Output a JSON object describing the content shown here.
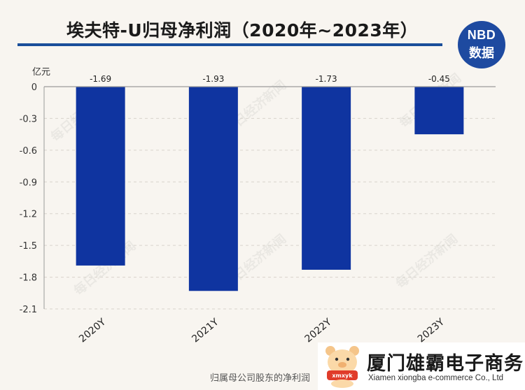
{
  "header": {
    "title": "埃夫特-U归母净利润（2020年~2023年）",
    "logo_top": "NBD",
    "logo_bottom": "数据",
    "logo_color": "#1e4aa0"
  },
  "watermark_text": "每日经济新闻",
  "chart_data": {
    "type": "bar",
    "title": "埃夫特-U归母净利润（2020年~2023年）",
    "ylabel": "亿元",
    "xlabel": "",
    "categories": [
      "2020Y",
      "2021Y",
      "2022Y",
      "2023Y"
    ],
    "values": [
      -1.69,
      -1.93,
      -1.73,
      -0.45
    ],
    "value_labels": [
      "-1.69",
      "-1.93",
      "-1.73",
      "-0.45"
    ],
    "ylim": [
      -2.1,
      0
    ],
    "yticks": [
      0,
      -0.3,
      -0.6,
      -0.9,
      -1.2,
      -1.5,
      -1.8,
      -2.1
    ],
    "ytick_labels": [
      "0",
      "-0.3",
      "-0.6",
      "-0.9",
      "-1.2",
      "-1.5",
      "-1.8",
      "-2.1"
    ],
    "bar_color": "#0f34a0",
    "grid": "horizontal-dashed",
    "legend": "none"
  },
  "footer": {
    "caption": "归属母公司股东的净利润"
  },
  "overlay_logo": {
    "name_cn": "厦门雄霸电子商务",
    "name_en": "Xiamen xiongba e-commerce Co., Ltd",
    "mascot_text": "xmxyk"
  }
}
